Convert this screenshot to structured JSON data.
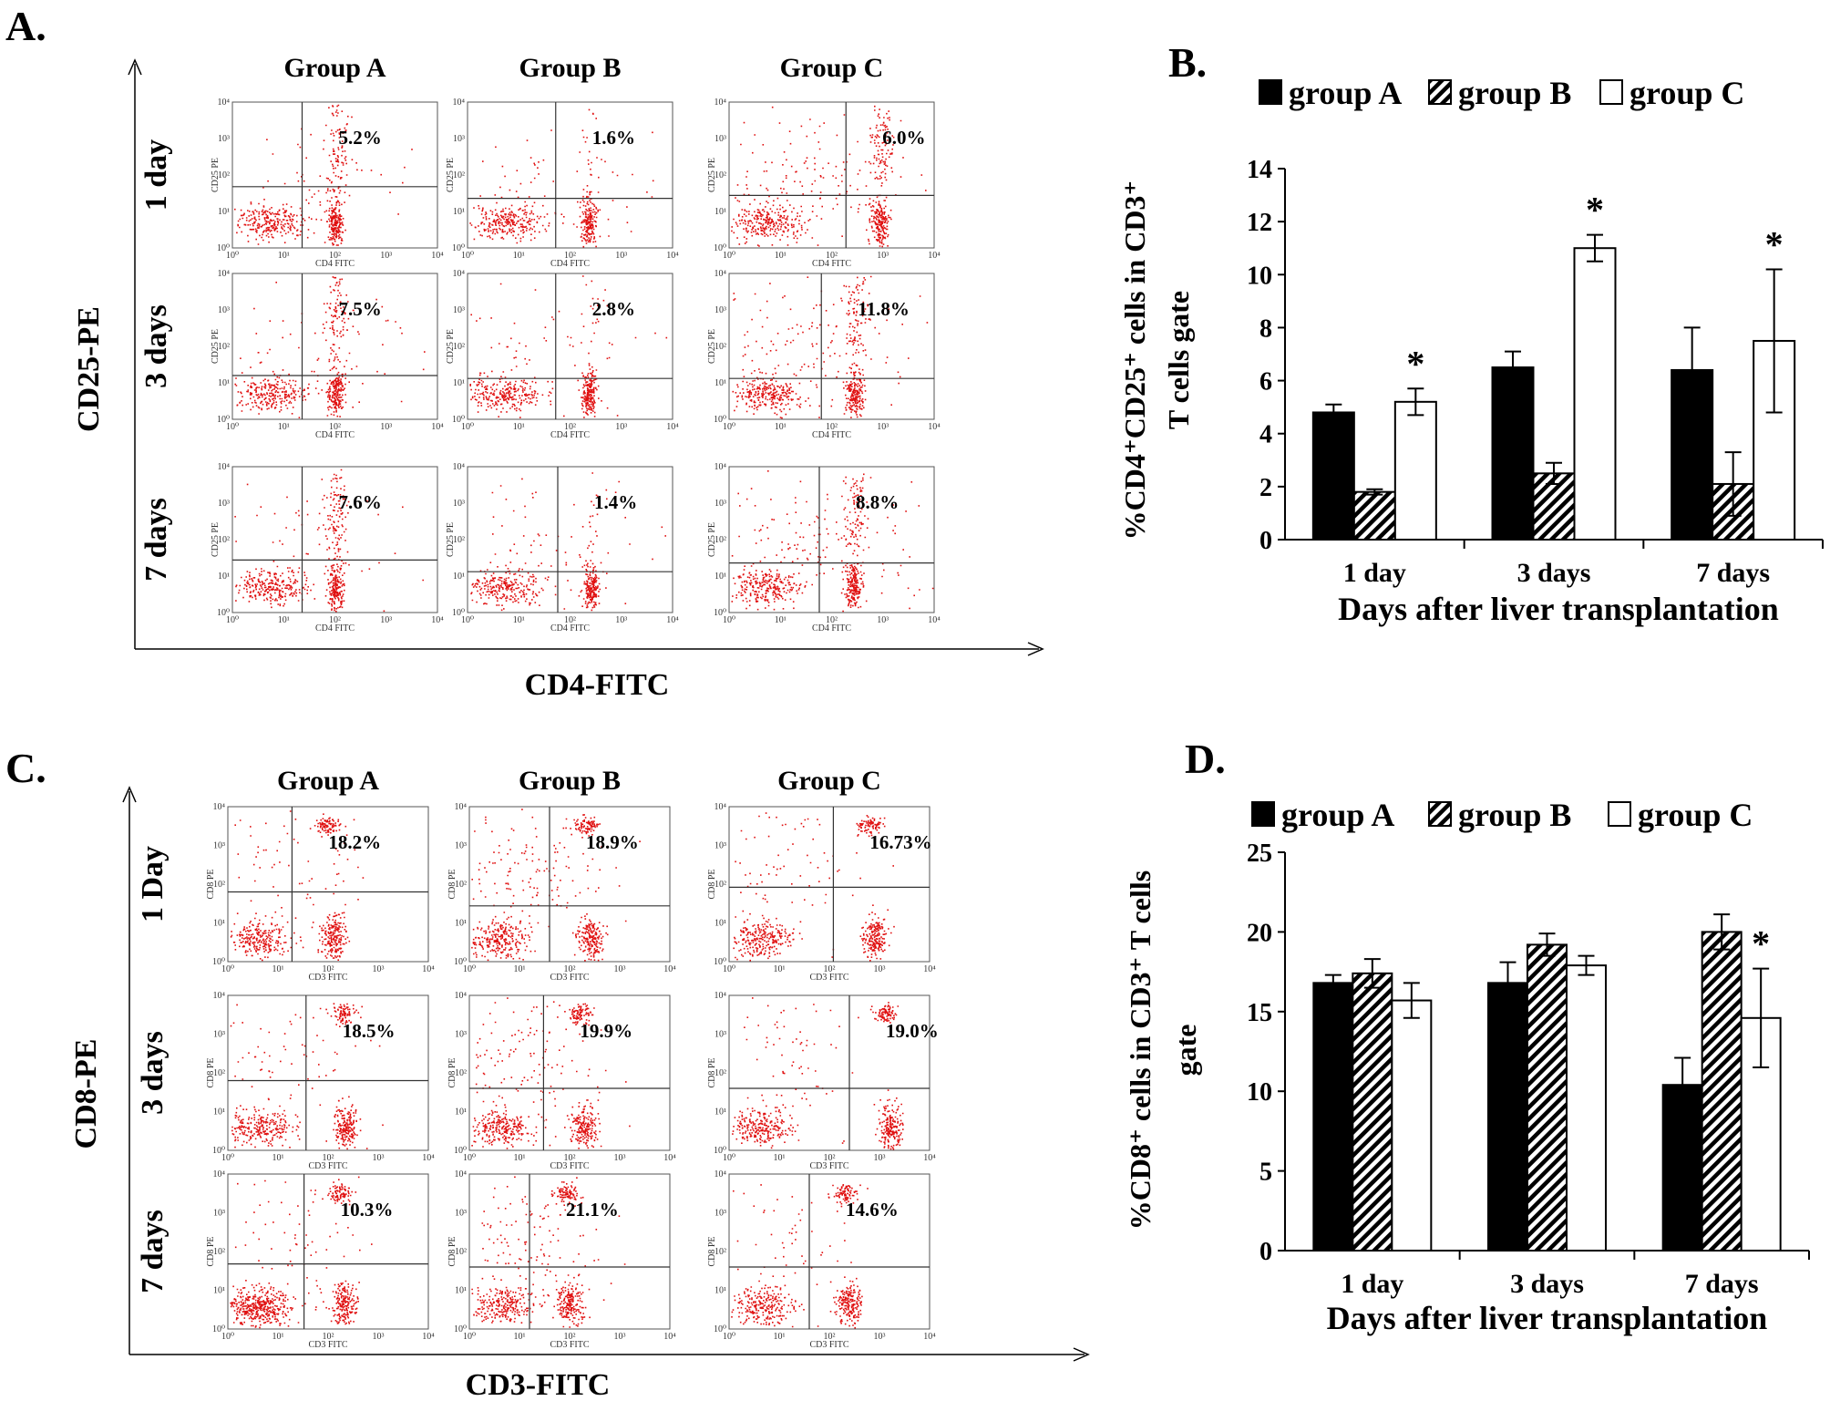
{
  "colors": {
    "dot": "#e01010",
    "bar_fill_a": "#000000",
    "bar_fill_c": "#ffffff",
    "line": "#000000"
  },
  "panelA": {
    "letter": "A.",
    "groups": [
      "Group A",
      "Group B",
      "Group C"
    ],
    "rows": [
      "1 day",
      "3 days",
      "7 days"
    ],
    "y_title": "CD25-PE",
    "x_title": "CD4-FITC",
    "small_ylabel": "CD25 PE",
    "small_xlabel": "CD4 FITC",
    "percents": [
      [
        "5.2%",
        "1.6%",
        "6.0%"
      ],
      [
        "7.5%",
        "2.8%",
        "11.8%"
      ],
      [
        "7.6%",
        "1.4%",
        "8.8%"
      ]
    ]
  },
  "panelC": {
    "letter": "C.",
    "groups": [
      "Group A",
      "Group B",
      "Group  C"
    ],
    "rows": [
      "1 Day",
      "3 days",
      "7 days"
    ],
    "y_title": "CD8-PE",
    "x_title": "CD3-FITC",
    "small_ylabel": "CD8 PE",
    "small_xlabel": "CD3 FITC",
    "percents": [
      [
        "18.2%",
        "18.9%",
        "16.73%"
      ],
      [
        "18.5%",
        "19.9%",
        "19.0%"
      ],
      [
        "10.3%",
        "21.1%",
        "14.6%"
      ]
    ]
  },
  "flow_tick_labels": [
    "10⁰",
    "10¹",
    "10²",
    "10³",
    "10⁴"
  ],
  "chart_data": [
    {
      "type": "bar",
      "panel": "B.",
      "title": "",
      "legend": [
        "group A",
        "group B",
        "group C"
      ],
      "categories": [
        "1 day",
        "3 days",
        "7 days"
      ],
      "series": [
        {
          "name": "group A",
          "values": [
            4.8,
            6.5,
            6.4
          ],
          "errors": [
            0.3,
            0.6,
            1.6
          ]
        },
        {
          "name": "group B",
          "values": [
            1.8,
            2.5,
            2.1
          ],
          "errors": [
            0.1,
            0.4,
            1.2
          ]
        },
        {
          "name": "group C",
          "values": [
            5.2,
            11.0,
            7.5
          ],
          "errors": [
            0.5,
            0.5,
            2.7
          ]
        }
      ],
      "significance": [
        "*",
        "*",
        "*"
      ],
      "xlabel": "Days after liver transplantation",
      "ylabel_line1": "%CD4⁺CD25⁺ cells in  CD3⁺",
      "ylabel_line2": "T cells gate",
      "ylim": [
        0,
        14
      ],
      "yticks": [
        0,
        2,
        4,
        6,
        8,
        10,
        12,
        14
      ]
    },
    {
      "type": "bar",
      "panel": "D.",
      "title": "",
      "legend": [
        "group A",
        "group B",
        "group C"
      ],
      "categories": [
        "1 day",
        "3 days",
        "7 days"
      ],
      "series": [
        {
          "name": "group A",
          "values": [
            16.8,
            16.8,
            10.4
          ],
          "errors": [
            0.5,
            1.3,
            1.7
          ]
        },
        {
          "name": "group B",
          "values": [
            17.4,
            19.2,
            20.0
          ],
          "errors": [
            0.9,
            0.7,
            1.1
          ]
        },
        {
          "name": "group C",
          "values": [
            15.7,
            17.9,
            14.6
          ],
          "errors": [
            1.1,
            0.6,
            3.1
          ]
        }
      ],
      "significance": [
        "",
        "",
        "*"
      ],
      "xlabel": "Days after liver transplantation",
      "ylabel_line1": "%CD8⁺ cells in  CD3⁺ T cells",
      "ylabel_line2": "gate",
      "ylim": [
        0,
        25
      ],
      "yticks": [
        0,
        5,
        10,
        15,
        20,
        25
      ]
    }
  ]
}
